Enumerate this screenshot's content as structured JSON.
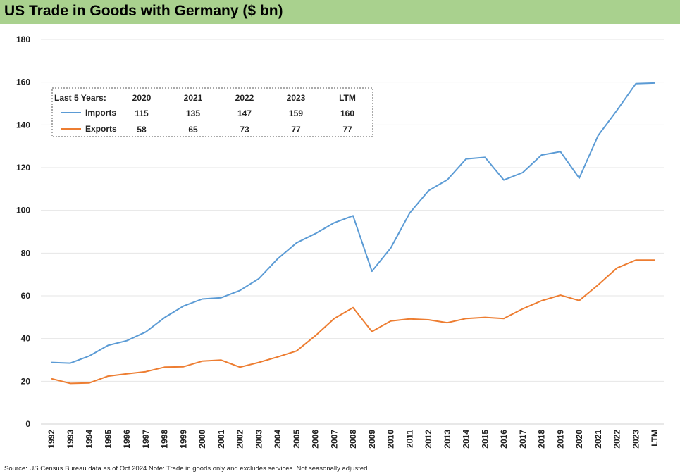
{
  "title": "US Trade in Goods with Germany ($ bn)",
  "source_note": "Source: US Census Bureau data as of Oct 2024 Note: Trade in goods only and excludes services. Not seasonally adjusted",
  "colors": {
    "title_bg": "#a9d18e",
    "imports": "#5b9bd5",
    "exports": "#ed7d31",
    "grid": "#e6e6e6"
  },
  "table": {
    "header_label": "Last 5 Years:",
    "columns": [
      "2020",
      "2021",
      "2022",
      "2023",
      "LTM"
    ],
    "rows": [
      {
        "name": "Imports",
        "color": "#5b9bd5",
        "values": [
          "115",
          "135",
          "147",
          "159",
          "160"
        ]
      },
      {
        "name": "Exports",
        "color": "#ed7d31",
        "values": [
          "58",
          "65",
          "73",
          "77",
          "77"
        ]
      }
    ]
  },
  "chart_data": {
    "type": "line",
    "title": "US Trade in Goods with Germany ($ bn)",
    "xlabel": "",
    "ylabel": "",
    "ylim": [
      0,
      180
    ],
    "yticks": [
      0,
      20,
      40,
      60,
      80,
      100,
      120,
      140,
      160,
      180
    ],
    "grid": true,
    "x": [
      "1992",
      "1993",
      "1994",
      "1995",
      "1996",
      "1997",
      "1998",
      "1999",
      "2000",
      "2001",
      "2002",
      "2003",
      "2004",
      "2005",
      "2006",
      "2007",
      "2008",
      "2009",
      "2010",
      "2011",
      "2012",
      "2013",
      "2014",
      "2015",
      "2016",
      "2017",
      "2018",
      "2019",
      "2020",
      "2021",
      "2022",
      "2023",
      "LTM"
    ],
    "series": [
      {
        "name": "Imports",
        "color": "#5b9bd5",
        "values": [
          28.8,
          28.5,
          31.8,
          36.8,
          39.0,
          43.1,
          49.8,
          55.2,
          58.5,
          59.1,
          62.5,
          68.0,
          77.3,
          84.8,
          89.1,
          94.2,
          97.5,
          71.5,
          82.4,
          98.7,
          109.2,
          114.3,
          124.1,
          124.8,
          114.2,
          117.7,
          125.9,
          127.5,
          115.1,
          135.0,
          146.8,
          159.3,
          159.6
        ]
      },
      {
        "name": "Exports",
        "color": "#ed7d31",
        "values": [
          21.2,
          19.0,
          19.2,
          22.4,
          23.5,
          24.5,
          26.6,
          26.8,
          29.4,
          29.9,
          26.6,
          28.8,
          31.4,
          34.2,
          41.3,
          49.4,
          54.5,
          43.3,
          48.2,
          49.2,
          48.8,
          47.4,
          49.4,
          49.9,
          49.4,
          53.9,
          57.7,
          60.3,
          57.8,
          65.1,
          73.0,
          76.7,
          76.7
        ]
      }
    ],
    "legend_placement": "inset table, upper-left"
  }
}
